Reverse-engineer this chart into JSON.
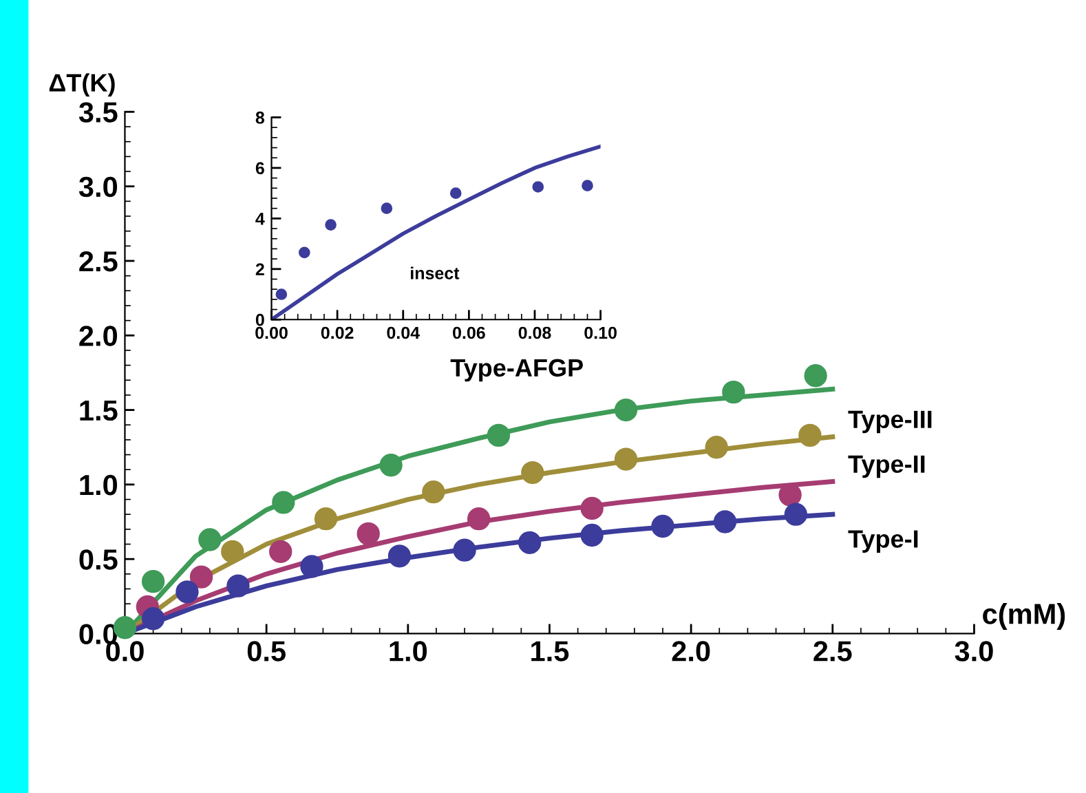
{
  "chart_data": [
    {
      "type": "scatter",
      "xlabel": "c(mM)",
      "ylabel": "ΔT(K)",
      "xlim": [
        0,
        3.0
      ],
      "ylim": [
        0,
        3.5
      ],
      "xticks": [
        {
          "value": 0,
          "label": "0.0"
        },
        0.5,
        {
          "value": 1,
          "label": "1.0"
        },
        1.5,
        {
          "value": 2,
          "label": "2.0"
        },
        2.5,
        {
          "value": 3,
          "label": "3.0"
        }
      ],
      "yticks": [
        {
          "value": 0,
          "label": "0.0"
        },
        0.5,
        {
          "value": 1,
          "label": "1.0"
        },
        1.5,
        {
          "value": 2,
          "label": "2.0"
        },
        2.5,
        {
          "value": 3,
          "label": "3.0"
        },
        3.5
      ],
      "grid": false,
      "legend": false,
      "series": [
        {
          "marker": "circle",
          "color": "#3e9b58",
          "x": [
            0.0,
            0.1,
            0.3,
            0.56,
            0.94,
            1.32,
            1.77,
            2.15,
            2.44
          ],
          "values": [
            0.04,
            0.35,
            0.63,
            0.88,
            1.13,
            1.33,
            1.5,
            1.62,
            1.73
          ]
        },
        {
          "marker": "circle",
          "color": "#a08e3a",
          "x": [
            0.38,
            0.71,
            1.09,
            1.44,
            1.77,
            2.09,
            2.42
          ],
          "values": [
            0.55,
            0.77,
            0.95,
            1.08,
            1.17,
            1.25,
            1.33
          ]
        },
        {
          "marker": "circle",
          "color": "#a63c72",
          "x": [
            0.08,
            0.27,
            0.55,
            0.86,
            1.25,
            1.65,
            2.35
          ],
          "values": [
            0.18,
            0.38,
            0.55,
            0.67,
            0.77,
            0.84,
            0.93
          ]
        },
        {
          "marker": "circle",
          "color": "#3c3c9c",
          "x": [
            0.1,
            0.22,
            0.4,
            0.66,
            0.97,
            1.2,
            1.43,
            1.65,
            1.9,
            2.12,
            2.37
          ],
          "values": [
            0.1,
            0.28,
            0.32,
            0.45,
            0.52,
            0.56,
            0.61,
            0.66,
            0.72,
            0.75,
            0.8
          ]
        },
        {
          "type": "line",
          "name": "Type-AFGP",
          "color": "#3e9b58",
          "x": [
            0,
            0.25,
            0.5,
            0.75,
            1.0,
            1.25,
            1.5,
            1.75,
            2.0,
            2.25,
            2.5
          ],
          "values": [
            0,
            0.52,
            0.83,
            1.03,
            1.19,
            1.31,
            1.42,
            1.5,
            1.56,
            1.6,
            1.64
          ]
        },
        {
          "type": "line",
          "name": "Type-III",
          "color": "#a08e3a",
          "x": [
            0,
            0.25,
            0.5,
            0.75,
            1.0,
            1.25,
            1.5,
            1.75,
            2.0,
            2.25,
            2.5
          ],
          "values": [
            0,
            0.35,
            0.6,
            0.77,
            0.9,
            1.0,
            1.08,
            1.15,
            1.21,
            1.27,
            1.32
          ]
        },
        {
          "type": "line",
          "name": "Type-II",
          "color": "#a63c72",
          "x": [
            0,
            0.25,
            0.5,
            0.75,
            1.0,
            1.25,
            1.5,
            1.75,
            2.0,
            2.25,
            2.5
          ],
          "values": [
            0,
            0.22,
            0.4,
            0.54,
            0.65,
            0.75,
            0.82,
            0.88,
            0.93,
            0.98,
            1.02
          ]
        },
        {
          "type": "line",
          "name": "Type-I",
          "color": "#3c3c9c",
          "x": [
            0,
            0.25,
            0.5,
            0.75,
            1.0,
            1.25,
            1.5,
            1.75,
            2.0,
            2.25,
            2.5
          ],
          "values": [
            0,
            0.18,
            0.32,
            0.43,
            0.51,
            0.58,
            0.64,
            0.69,
            0.73,
            0.77,
            0.8
          ]
        }
      ]
    },
    {
      "type": "scatter",
      "xlim": [
        0,
        0.1
      ],
      "ylim": [
        0,
        8
      ],
      "xticks": [
        {
          "value": 0,
          "label": "0.00"
        },
        0.02,
        0.04,
        0.06,
        0.08,
        {
          "value": 0.1,
          "label": "0.10"
        }
      ],
      "yticks": [
        0,
        2,
        4,
        6,
        8
      ],
      "grid": false,
      "legend": false,
      "annotations": [
        "insect"
      ],
      "series": [
        {
          "marker": "circle",
          "color": "#3c3c9c",
          "x": [
            0.003,
            0.01,
            0.018,
            0.035,
            0.056,
            0.081,
            0.096
          ],
          "values": [
            1.0,
            2.65,
            3.75,
            4.4,
            5.0,
            5.25,
            5.3
          ]
        },
        {
          "type": "line",
          "color": "#3c3c9c",
          "x": [
            0,
            0.01,
            0.02,
            0.03,
            0.04,
            0.05,
            0.06,
            0.07,
            0.08,
            0.09,
            0.1
          ],
          "values": [
            0,
            0.9,
            1.8,
            2.6,
            3.4,
            4.1,
            4.75,
            5.4,
            6.0,
            6.45,
            6.85
          ]
        }
      ]
    }
  ]
}
